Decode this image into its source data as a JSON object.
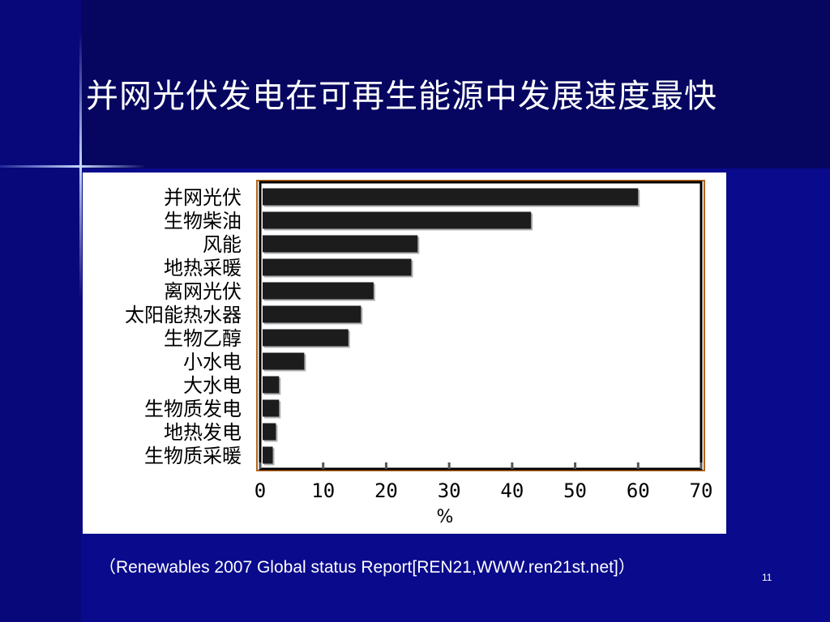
{
  "slide": {
    "title": "并网光伏发电在可再生能源中发展速度最快",
    "source": "（Renewables 2007 Global status Report[REN21,WWW.ren21st.net]）",
    "page_number": "11"
  },
  "colors": {
    "background": "#0a0a8c",
    "title_band": "#060660",
    "bar_fill": "#1c1c1c",
    "bar_shadow": "#b0b0b0",
    "frame_accent": "#b5651d"
  },
  "chart_data": {
    "type": "bar",
    "orientation": "horizontal",
    "categories": [
      "并网光伏",
      "生物柴油",
      "风能",
      "地热采暖",
      "离网光伏",
      "太阳能热水器",
      "生物乙醇",
      "小水电",
      "大水电",
      "生物质发电",
      "地热发电",
      "生物质采暖"
    ],
    "values": [
      60,
      43,
      25,
      24,
      18,
      16,
      14,
      7,
      3,
      3,
      2.5,
      2
    ],
    "xlim": [
      0,
      70
    ],
    "xticks": [
      0,
      10,
      20,
      30,
      40,
      50,
      60,
      70
    ],
    "xlabel": "%",
    "ylabel": "",
    "grid": false,
    "legend": "none"
  }
}
